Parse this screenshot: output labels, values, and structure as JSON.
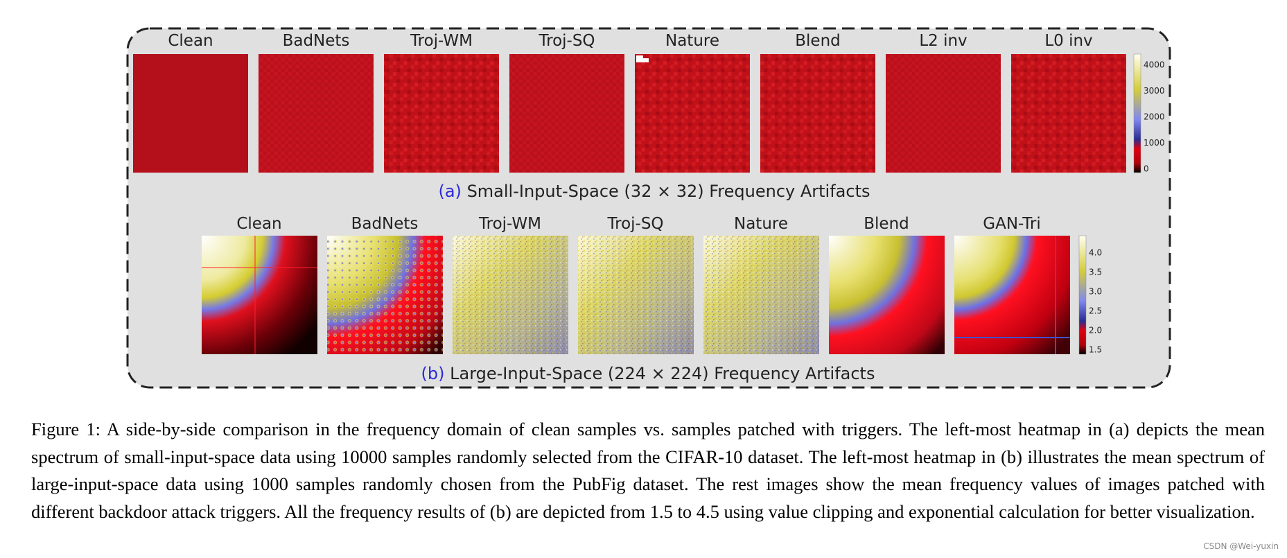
{
  "panel_a": {
    "labels": [
      "Clean",
      "BadNets",
      "Troj-WM",
      "Troj-SQ",
      "Nature",
      "Blend",
      "L2 inv",
      "L0 inv"
    ],
    "colorbar_ticks": [
      "4000",
      "3000",
      "2000",
      "1000",
      "0"
    ],
    "caption_tag": "(a)",
    "caption": "Small-Input-Space (32 × 32) Frequency Artifacts"
  },
  "panel_b": {
    "labels": [
      "Clean",
      "BadNets",
      "Troj-WM",
      "Troj-SQ",
      "Nature",
      "Blend",
      "GAN-Tri"
    ],
    "colorbar_ticks": [
      "4.0",
      "3.5",
      "3.0",
      "2.5",
      "2.0",
      "1.5"
    ],
    "caption_tag": "(b)",
    "caption": "Large-Input-Space (224 × 224) Frequency Artifacts"
  },
  "figure_caption": "Figure 1: A side-by-side comparison in the frequency domain of clean samples vs. samples patched with triggers. The left-most heatmap in (a) depicts the mean spectrum of small-input-space data using 10000 samples randomly selected from the CIFAR-10 dataset. The left-most heatmap in (b) illustrates the mean spectrum of large-input-space data using 1000 samples randomly chosen from the PubFig dataset. The rest images show the mean frequency values of images patched with different backdoor attack triggers. All the frequency results of (b) are depicted from 1.5 to 4.5 using value clipping and exponential calculation for better visualization.",
  "watermark": "CSDN @Wei-yuxin"
}
